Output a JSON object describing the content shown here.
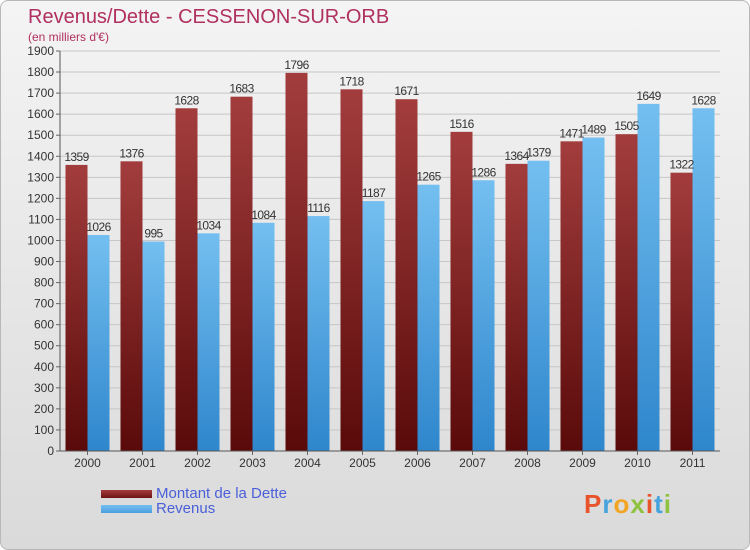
{
  "chart_data": {
    "type": "bar",
    "title": "Revenus/Dette - CESSENON-SUR-ORB",
    "subtitle": "(en milliers d'€)",
    "categories": [
      "2000",
      "2001",
      "2002",
      "2003",
      "2004",
      "2005",
      "2006",
      "2007",
      "2008",
      "2009",
      "2010",
      "2011"
    ],
    "series": [
      {
        "name": "Montant de la Dette",
        "color": "#6e1414",
        "values": [
          1359,
          1376,
          1628,
          1683,
          1796,
          1718,
          1671,
          1516,
          1364,
          1471,
          1505,
          1322
        ],
        "labels": [
          "1359",
          "1376",
          "1628",
          "1683",
          "1796",
          "1718",
          "1671",
          "1516",
          "1364",
          "1471",
          "1505",
          "1322"
        ]
      },
      {
        "name": "Revenus",
        "color": "#4a9fe0",
        "values": [
          1026,
          995,
          1034,
          1084,
          1116,
          1187,
          1265,
          1286,
          1379,
          1489,
          1649,
          1628
        ],
        "labels": [
          "1026",
          "995",
          "1034",
          "1084",
          "1116",
          "1187",
          "1265",
          "1286",
          "1379",
          "1489",
          "1649",
          "1628"
        ]
      }
    ],
    "ylim": [
      0,
      1900
    ],
    "yticks": [
      0,
      100,
      200,
      300,
      400,
      500,
      600,
      700,
      800,
      900,
      1000,
      1100,
      1200,
      1300,
      1400,
      1500,
      1600,
      1700,
      1800,
      1900
    ],
    "grid": true,
    "legend": "bottom-left"
  },
  "logo": {
    "text": "Proxiti"
  }
}
